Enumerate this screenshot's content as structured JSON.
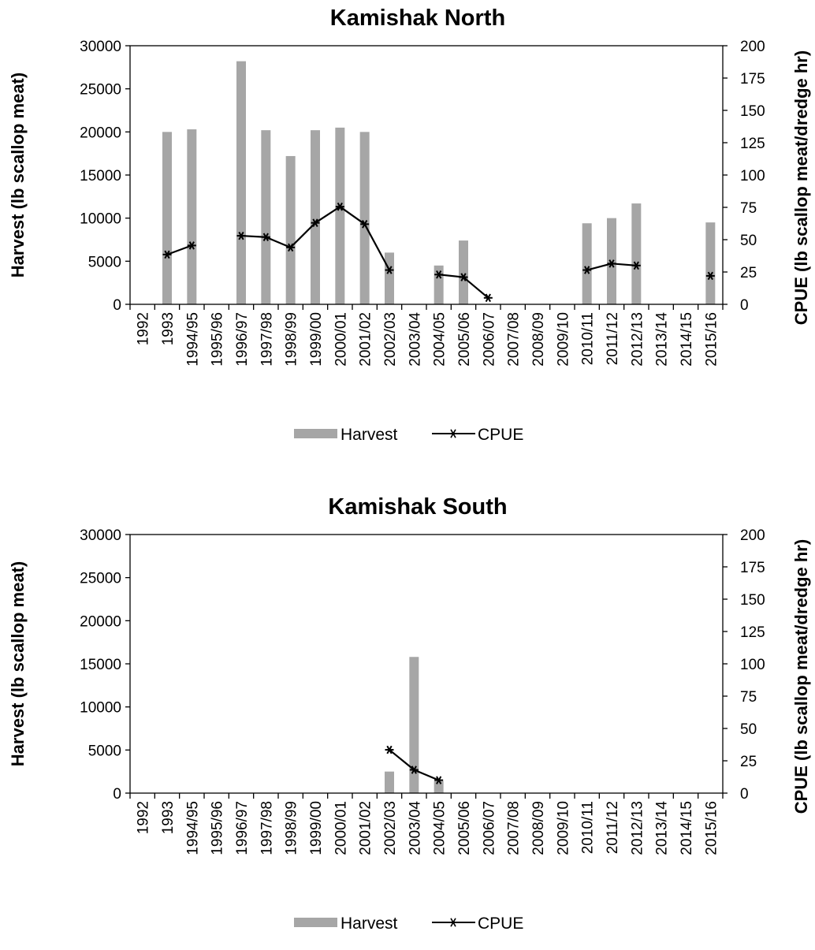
{
  "chart_data": [
    {
      "type": "bar",
      "title": "Kamishak North",
      "categories": [
        "1992",
        "1993",
        "1994/95",
        "1995/96",
        "1996/97",
        "1997/98",
        "1998/99",
        "1999/00",
        "2000/01",
        "2001/02",
        "2002/03",
        "2003/04",
        "2004/05",
        "2005/06",
        "2006/07",
        "2007/08",
        "2008/09",
        "2009/10",
        "2010/11",
        "2011/12",
        "2012/13",
        "2013/14",
        "2014/15",
        "2015/16"
      ],
      "ylabel": "Harvest (lb scallop meat)",
      "y2label": "CPUE  (lb scallop meat/dredge hr)",
      "ylim": [
        0,
        30000
      ],
      "y2lim": [
        0,
        200
      ],
      "yticks": [
        0,
        5000,
        10000,
        15000,
        20000,
        25000,
        30000
      ],
      "y2ticks": [
        0,
        25,
        50,
        75,
        100,
        125,
        150,
        175,
        200
      ],
      "legend_position": "bottom",
      "series": [
        {
          "name": "Harvest",
          "type": "bar",
          "axis": "left",
          "color": "#a6a6a6",
          "values": [
            null,
            20000,
            20300,
            null,
            28200,
            20200,
            17200,
            20200,
            20500,
            20000,
            6000,
            null,
            4500,
            7400,
            null,
            null,
            null,
            null,
            9400,
            10000,
            11700,
            null,
            null,
            9500
          ]
        },
        {
          "name": "CPUE",
          "type": "line",
          "axis": "right",
          "color": "#000000",
          "marker": "asterisk",
          "values": [
            null,
            38.5,
            45.5,
            null,
            53,
            52,
            44,
            63,
            75.5,
            62,
            26.5,
            null,
            23,
            21,
            5,
            null,
            null,
            null,
            26.5,
            31.5,
            30,
            null,
            null,
            22
          ]
        }
      ]
    },
    {
      "type": "bar",
      "title": "Kamishak South",
      "categories": [
        "1992",
        "1993",
        "1994/95",
        "1995/96",
        "1996/97",
        "1997/98",
        "1998/99",
        "1999/00",
        "2000/01",
        "2001/02",
        "2002/03",
        "2003/04",
        "2004/05",
        "2005/06",
        "2006/07",
        "2007/08",
        "2008/09",
        "2009/10",
        "2010/11",
        "2011/12",
        "2012/13",
        "2013/14",
        "2014/15",
        "2015/16"
      ],
      "ylabel": "Harvest (lb scallop meat)",
      "y2label": "CPUE  (lb scallop meat/dredge hr)",
      "ylim": [
        0,
        30000
      ],
      "y2lim": [
        0,
        200
      ],
      "yticks": [
        0,
        5000,
        10000,
        15000,
        20000,
        25000,
        30000
      ],
      "y2ticks": [
        0,
        25,
        50,
        75,
        100,
        125,
        150,
        175,
        200
      ],
      "legend_position": "bottom",
      "series": [
        {
          "name": "Harvest",
          "type": "bar",
          "axis": "left",
          "color": "#a6a6a6",
          "values": [
            null,
            null,
            null,
            null,
            null,
            null,
            null,
            null,
            null,
            null,
            2500,
            15800,
            1400,
            null,
            null,
            null,
            null,
            null,
            null,
            null,
            null,
            null,
            null,
            null
          ]
        },
        {
          "name": "CPUE",
          "type": "line",
          "axis": "right",
          "color": "#000000",
          "marker": "asterisk",
          "values": [
            null,
            null,
            null,
            null,
            null,
            null,
            null,
            null,
            null,
            null,
            33.5,
            18,
            10,
            null,
            null,
            null,
            null,
            null,
            null,
            null,
            null,
            null,
            null,
            null
          ]
        }
      ]
    }
  ]
}
